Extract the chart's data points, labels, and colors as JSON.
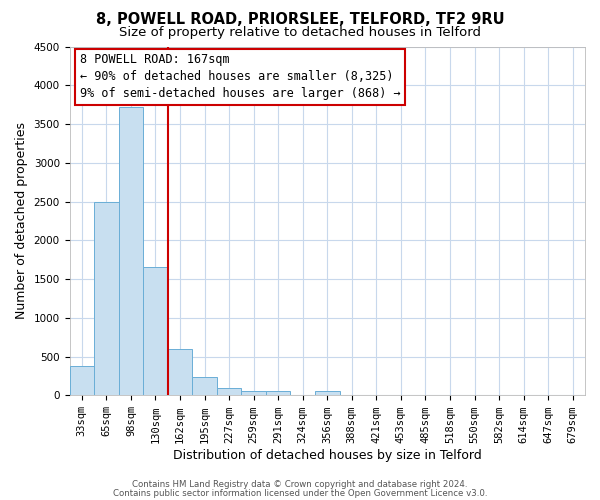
{
  "title": "8, POWELL ROAD, PRIORSLEE, TELFORD, TF2 9RU",
  "subtitle": "Size of property relative to detached houses in Telford",
  "xlabel": "Distribution of detached houses by size in Telford",
  "ylabel": "Number of detached properties",
  "bin_labels": [
    "33sqm",
    "65sqm",
    "98sqm",
    "130sqm",
    "162sqm",
    "195sqm",
    "227sqm",
    "259sqm",
    "291sqm",
    "324sqm",
    "356sqm",
    "388sqm",
    "421sqm",
    "453sqm",
    "485sqm",
    "518sqm",
    "550sqm",
    "582sqm",
    "614sqm",
    "647sqm",
    "679sqm"
  ],
  "bar_values": [
    375,
    2500,
    3725,
    1650,
    600,
    240,
    100,
    55,
    55,
    0,
    55,
    0,
    0,
    0,
    0,
    0,
    0,
    0,
    0,
    0,
    0
  ],
  "bar_color": "#c8dff0",
  "bar_edge_color": "#6aaed6",
  "highlight_line_color": "#cc0000",
  "annotation_line1": "8 POWELL ROAD: 167sqm",
  "annotation_line2": "← 90% of detached houses are smaller (8,325)",
  "annotation_line3": "9% of semi-detached houses are larger (868) →",
  "ylim": [
    0,
    4500
  ],
  "yticks": [
    0,
    500,
    1000,
    1500,
    2000,
    2500,
    3000,
    3500,
    4000,
    4500
  ],
  "footer_line1": "Contains HM Land Registry data © Crown copyright and database right 2024.",
  "footer_line2": "Contains public sector information licensed under the Open Government Licence v3.0.",
  "background_color": "#ffffff",
  "grid_color": "#c8d8ec",
  "title_fontsize": 10.5,
  "subtitle_fontsize": 9.5,
  "axis_label_fontsize": 9,
  "tick_fontsize": 7.5,
  "footer_fontsize": 6.2,
  "annotation_fontsize": 8.5
}
